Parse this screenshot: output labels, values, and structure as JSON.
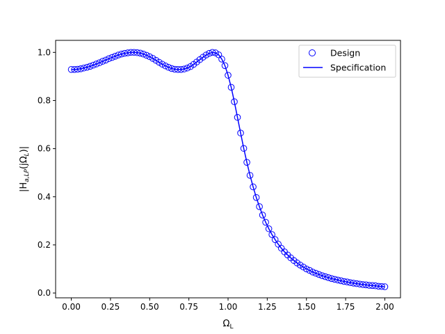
{
  "chart_data": {
    "type": "line",
    "title": "",
    "xlabel_base": "Ω",
    "xlabel_sub": "L",
    "ylabel": "|H_{a,LP}(jΩ_L)|",
    "xlim": [
      -0.1,
      2.1
    ],
    "ylim": [
      -0.02,
      1.05
    ],
    "xticks": [
      0.0,
      0.25,
      0.5,
      0.75,
      1.0,
      1.25,
      1.5,
      1.75,
      2.0
    ],
    "xtick_labels": [
      "0.00",
      "0.25",
      "0.50",
      "0.75",
      "1.00",
      "1.25",
      "1.50",
      "1.75",
      "2.00"
    ],
    "yticks": [
      0.0,
      0.2,
      0.4,
      0.6,
      0.8,
      1.0
    ],
    "ytick_labels": [
      "0.0",
      "0.2",
      "0.4",
      "0.6",
      "0.8",
      "1.0"
    ],
    "grid": false,
    "legend": "top-right",
    "series": [
      {
        "name": "Design",
        "style": "markers",
        "marker": "open-circle",
        "color": "#0000ff",
        "x": [
          0.0,
          0.02,
          0.04,
          0.06,
          0.08,
          0.1,
          0.12,
          0.14,
          0.16,
          0.18,
          0.2,
          0.22,
          0.24,
          0.26,
          0.28,
          0.3,
          0.32,
          0.34,
          0.36,
          0.38,
          0.4,
          0.42,
          0.44,
          0.46,
          0.48,
          0.5,
          0.52,
          0.54,
          0.56,
          0.58,
          0.6,
          0.62,
          0.64,
          0.66,
          0.68,
          0.7,
          0.72,
          0.74,
          0.76,
          0.78,
          0.8,
          0.82,
          0.84,
          0.86,
          0.88,
          0.9,
          0.92,
          0.94,
          0.96,
          0.98,
          1.0,
          1.02,
          1.04,
          1.06,
          1.08,
          1.1,
          1.12,
          1.14,
          1.16,
          1.18,
          1.2,
          1.22,
          1.24,
          1.26,
          1.28,
          1.3,
          1.32,
          1.34,
          1.36,
          1.38,
          1.4,
          1.42,
          1.44,
          1.46,
          1.48,
          1.5,
          1.52,
          1.54,
          1.56,
          1.58,
          1.6,
          1.62,
          1.64,
          1.66,
          1.68,
          1.7,
          1.72,
          1.74,
          1.76,
          1.78,
          1.8,
          1.82,
          1.84,
          1.86,
          1.88,
          1.9,
          1.92,
          1.94,
          1.96,
          1.98,
          2.0
        ],
        "y": [
          0.929,
          0.929,
          0.93,
          0.932,
          0.935,
          0.938,
          0.942,
          0.947,
          0.952,
          0.957,
          0.963,
          0.968,
          0.974,
          0.979,
          0.984,
          0.989,
          0.993,
          0.996,
          0.998,
          1.0,
          1.0,
          0.999,
          0.997,
          0.993,
          0.988,
          0.982,
          0.975,
          0.967,
          0.959,
          0.951,
          0.944,
          0.938,
          0.933,
          0.93,
          0.929,
          0.929,
          0.931,
          0.935,
          0.941,
          0.95,
          0.96,
          0.97,
          0.98,
          0.989,
          0.996,
          1.0,
          0.998,
          0.99,
          0.972,
          0.945,
          0.905,
          0.855,
          0.795,
          0.73,
          0.665,
          0.601,
          0.543,
          0.489,
          0.441,
          0.397,
          0.359,
          0.324,
          0.294,
          0.267,
          0.243,
          0.222,
          0.203,
          0.186,
          0.171,
          0.158,
          0.146,
          0.135,
          0.125,
          0.116,
          0.108,
          0.1,
          0.094,
          0.087,
          0.082,
          0.077,
          0.072,
          0.068,
          0.064,
          0.06,
          0.057,
          0.054,
          0.051,
          0.048,
          0.046,
          0.043,
          0.041,
          0.039,
          0.037,
          0.035,
          0.034,
          0.032,
          0.031,
          0.03,
          0.028,
          0.027,
          0.026
        ]
      },
      {
        "name": "Specification",
        "style": "line",
        "color": "#0000ff",
        "x": [
          0.0,
          0.02,
          0.04,
          0.06,
          0.08,
          0.1,
          0.12,
          0.14,
          0.16,
          0.18,
          0.2,
          0.22,
          0.24,
          0.26,
          0.28,
          0.3,
          0.32,
          0.34,
          0.36,
          0.38,
          0.4,
          0.42,
          0.44,
          0.46,
          0.48,
          0.5,
          0.52,
          0.54,
          0.56,
          0.58,
          0.6,
          0.62,
          0.64,
          0.66,
          0.68,
          0.7,
          0.72,
          0.74,
          0.76,
          0.78,
          0.8,
          0.82,
          0.84,
          0.86,
          0.88,
          0.9,
          0.92,
          0.94,
          0.96,
          0.98,
          1.0,
          1.02,
          1.04,
          1.06,
          1.08,
          1.1,
          1.12,
          1.14,
          1.16,
          1.18,
          1.2,
          1.22,
          1.24,
          1.26,
          1.28,
          1.3,
          1.32,
          1.34,
          1.36,
          1.38,
          1.4,
          1.42,
          1.44,
          1.46,
          1.48,
          1.5,
          1.52,
          1.54,
          1.56,
          1.58,
          1.6,
          1.62,
          1.64,
          1.66,
          1.68,
          1.7,
          1.72,
          1.74,
          1.76,
          1.78,
          1.8,
          1.82,
          1.84,
          1.86,
          1.88,
          1.9,
          1.92,
          1.94,
          1.96,
          1.98,
          2.0
        ],
        "y": [
          0.929,
          0.929,
          0.93,
          0.932,
          0.935,
          0.938,
          0.942,
          0.947,
          0.952,
          0.957,
          0.963,
          0.968,
          0.974,
          0.979,
          0.984,
          0.989,
          0.993,
          0.996,
          0.998,
          1.0,
          1.0,
          0.999,
          0.997,
          0.993,
          0.988,
          0.982,
          0.975,
          0.967,
          0.959,
          0.951,
          0.944,
          0.938,
          0.933,
          0.93,
          0.929,
          0.929,
          0.931,
          0.935,
          0.941,
          0.95,
          0.96,
          0.97,
          0.98,
          0.989,
          0.996,
          1.0,
          0.998,
          0.99,
          0.972,
          0.945,
          0.905,
          0.855,
          0.795,
          0.73,
          0.665,
          0.601,
          0.543,
          0.489,
          0.441,
          0.397,
          0.359,
          0.324,
          0.294,
          0.267,
          0.243,
          0.222,
          0.203,
          0.186,
          0.171,
          0.158,
          0.146,
          0.135,
          0.125,
          0.116,
          0.108,
          0.1,
          0.094,
          0.087,
          0.082,
          0.077,
          0.072,
          0.068,
          0.064,
          0.06,
          0.057,
          0.054,
          0.051,
          0.048,
          0.046,
          0.043,
          0.041,
          0.039,
          0.037,
          0.035,
          0.034,
          0.032,
          0.031,
          0.03,
          0.028,
          0.027,
          0.026
        ]
      }
    ]
  }
}
